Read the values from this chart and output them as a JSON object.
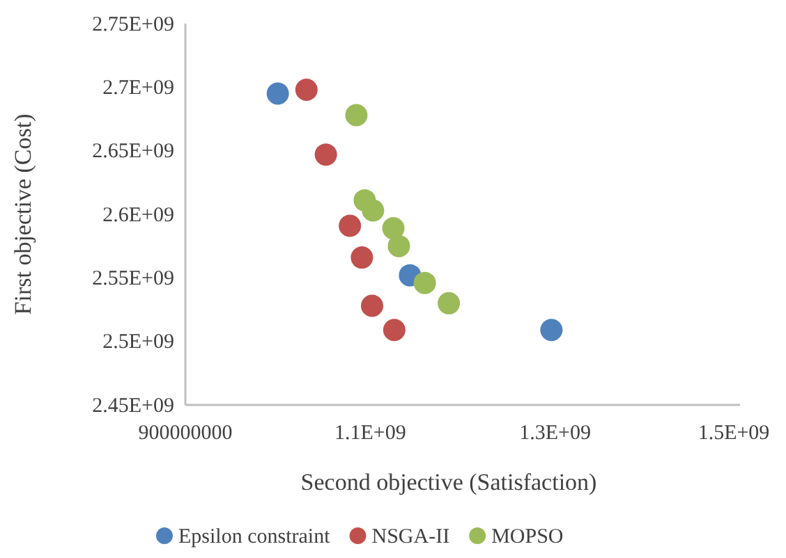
{
  "chart_data": {
    "type": "scatter",
    "xlabel": "Second objective (Satisfaction)",
    "ylabel": "First objective (Cost)",
    "xlim": [
      900000000,
      1500000000
    ],
    "xticks": [
      900000000,
      {
        "value": 1100000000,
        "label": "1.1E+09"
      },
      {
        "value": 1300000000,
        "label": "1.3E+09"
      },
      {
        "value": 1500000000,
        "label": "1.5E+09"
      }
    ],
    "ylim": [
      2450000000,
      2750000000
    ],
    "yticks": [
      {
        "value": 2450000000,
        "label": "2.45E+09"
      },
      {
        "value": 2500000000,
        "label": "2.5E+09"
      },
      {
        "value": 2550000000,
        "label": "2.55E+09"
      },
      {
        "value": 2600000000,
        "label": "2.6E+09"
      },
      {
        "value": 2650000000,
        "label": "2.65E+09"
      },
      {
        "value": 2700000000,
        "label": "2.7E+09"
      },
      {
        "value": 2750000000,
        "label": "2.75E+09"
      }
    ],
    "grid": false,
    "legend": "bottom",
    "marker": "circle",
    "series": [
      {
        "name": "Epsilon constraint",
        "color": "#4f81bd",
        "x": [
          1000000000,
          1143000000,
          1296000000
        ],
        "values": [
          2695000000,
          2552000000,
          2509000000
        ]
      },
      {
        "name": "NSGA-II",
        "color": "#c0504d",
        "x": [
          1031000000,
          1052000000,
          1078000000,
          1091000000,
          1102000000,
          1126000000
        ],
        "values": [
          2698000000,
          2647000000,
          2591000000,
          2566000000,
          2528000000,
          2509000000
        ]
      },
      {
        "name": "MOPSO",
        "color": "#9bbb59",
        "x": [
          1085000000,
          1094000000,
          1103000000,
          1125000000,
          1131000000,
          1159000000,
          1185000000
        ],
        "values": [
          2678000000,
          2611000000,
          2603000000,
          2589000000,
          2575000000,
          2546000000,
          2530000000
        ]
      }
    ]
  }
}
